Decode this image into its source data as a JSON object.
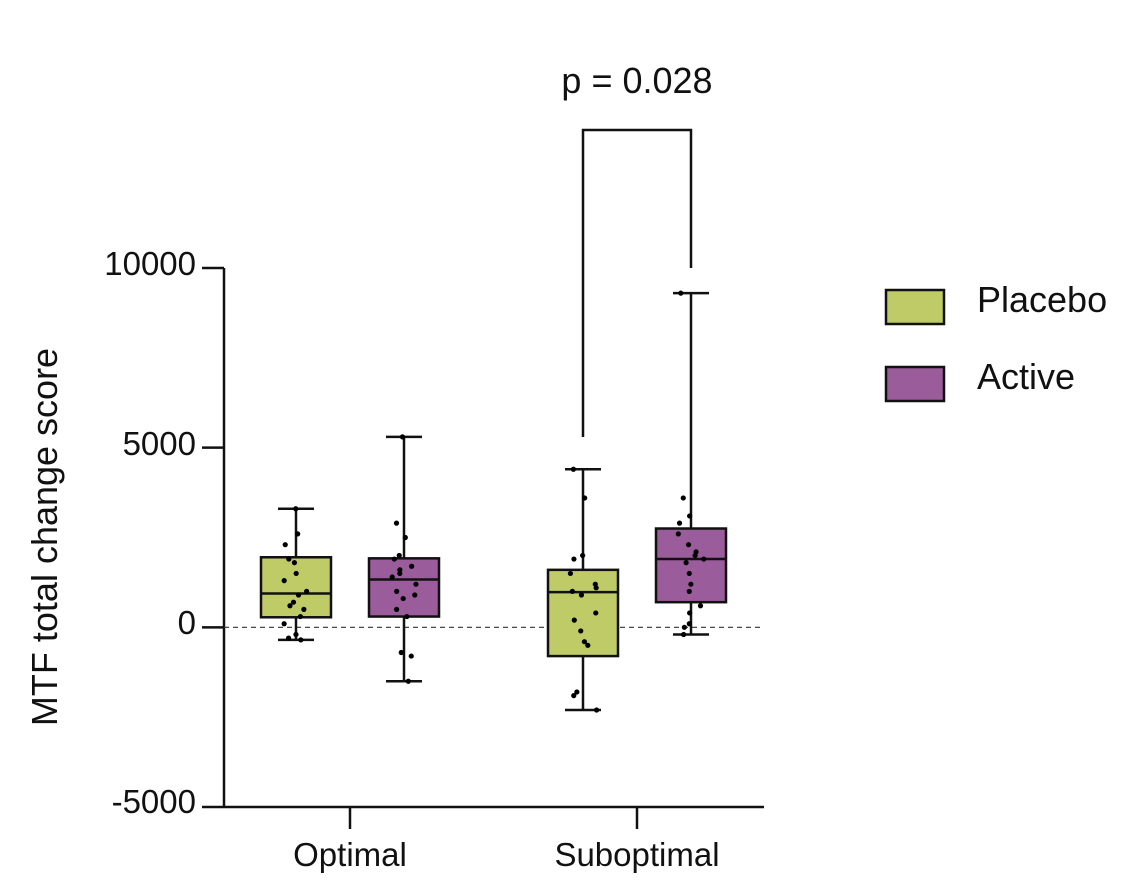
{
  "chart_data": {
    "type": "box",
    "title": "",
    "xlabel": "",
    "ylabel": "MTF total change score",
    "ylim": [
      -5000,
      10000
    ],
    "yticks": [
      10000,
      5000,
      0,
      -5000
    ],
    "ytick_labels": [
      "10000",
      "5000",
      "0",
      "-5000"
    ],
    "categories": [
      "Optimal",
      "Suboptimal"
    ],
    "reference_line": {
      "y": 0,
      "style": "dashed"
    },
    "legend": {
      "position": "right"
    },
    "series": [
      {
        "name": "Placebo",
        "color": "#bfcb66",
        "boxes": [
          {
            "category": "Optimal",
            "min": -350,
            "q1": 280,
            "median": 940,
            "q3": 1950,
            "max": 3300,
            "points": [
              3300,
              2600,
              2300,
              1900,
              1800,
              1500,
              1300,
              1000,
              900,
              700,
              600,
              500,
              300,
              100,
              -200,
              -300,
              -350
            ]
          },
          {
            "category": "Suboptimal",
            "min": -2300,
            "q1": -800,
            "median": 980,
            "q3": 1600,
            "max": 4400,
            "points": [
              4400,
              3600,
              2000,
              1900,
              1500,
              1200,
              1100,
              1000,
              900,
              400,
              200,
              -100,
              -400,
              -500,
              -1800,
              -1900,
              -2300
            ]
          }
        ]
      },
      {
        "name": "Active",
        "color": "#9a5c9a",
        "boxes": [
          {
            "category": "Optimal",
            "min": -1500,
            "q1": 300,
            "median": 1330,
            "q3": 1920,
            "max": 5300,
            "points": [
              5300,
              2900,
              2500,
              2000,
              1900,
              1700,
              1600,
              1500,
              1400,
              1200,
              1000,
              900,
              800,
              500,
              300,
              -700,
              -800,
              -1500
            ]
          },
          {
            "category": "Suboptimal",
            "min": -200,
            "q1": 700,
            "median": 1900,
            "q3": 2750,
            "max": 9300,
            "points": [
              9300,
              3600,
              3100,
              2900,
              2600,
              2300,
              2100,
              2000,
              1900,
              1800,
              1500,
              1200,
              1000,
              600,
              400,
              100,
              0,
              -200
            ]
          }
        ]
      }
    ],
    "annotations": [
      {
        "text": "p = 0.028",
        "between": [
          "Suboptimal:Placebo",
          "Suboptimal:Active"
        ]
      }
    ]
  }
}
